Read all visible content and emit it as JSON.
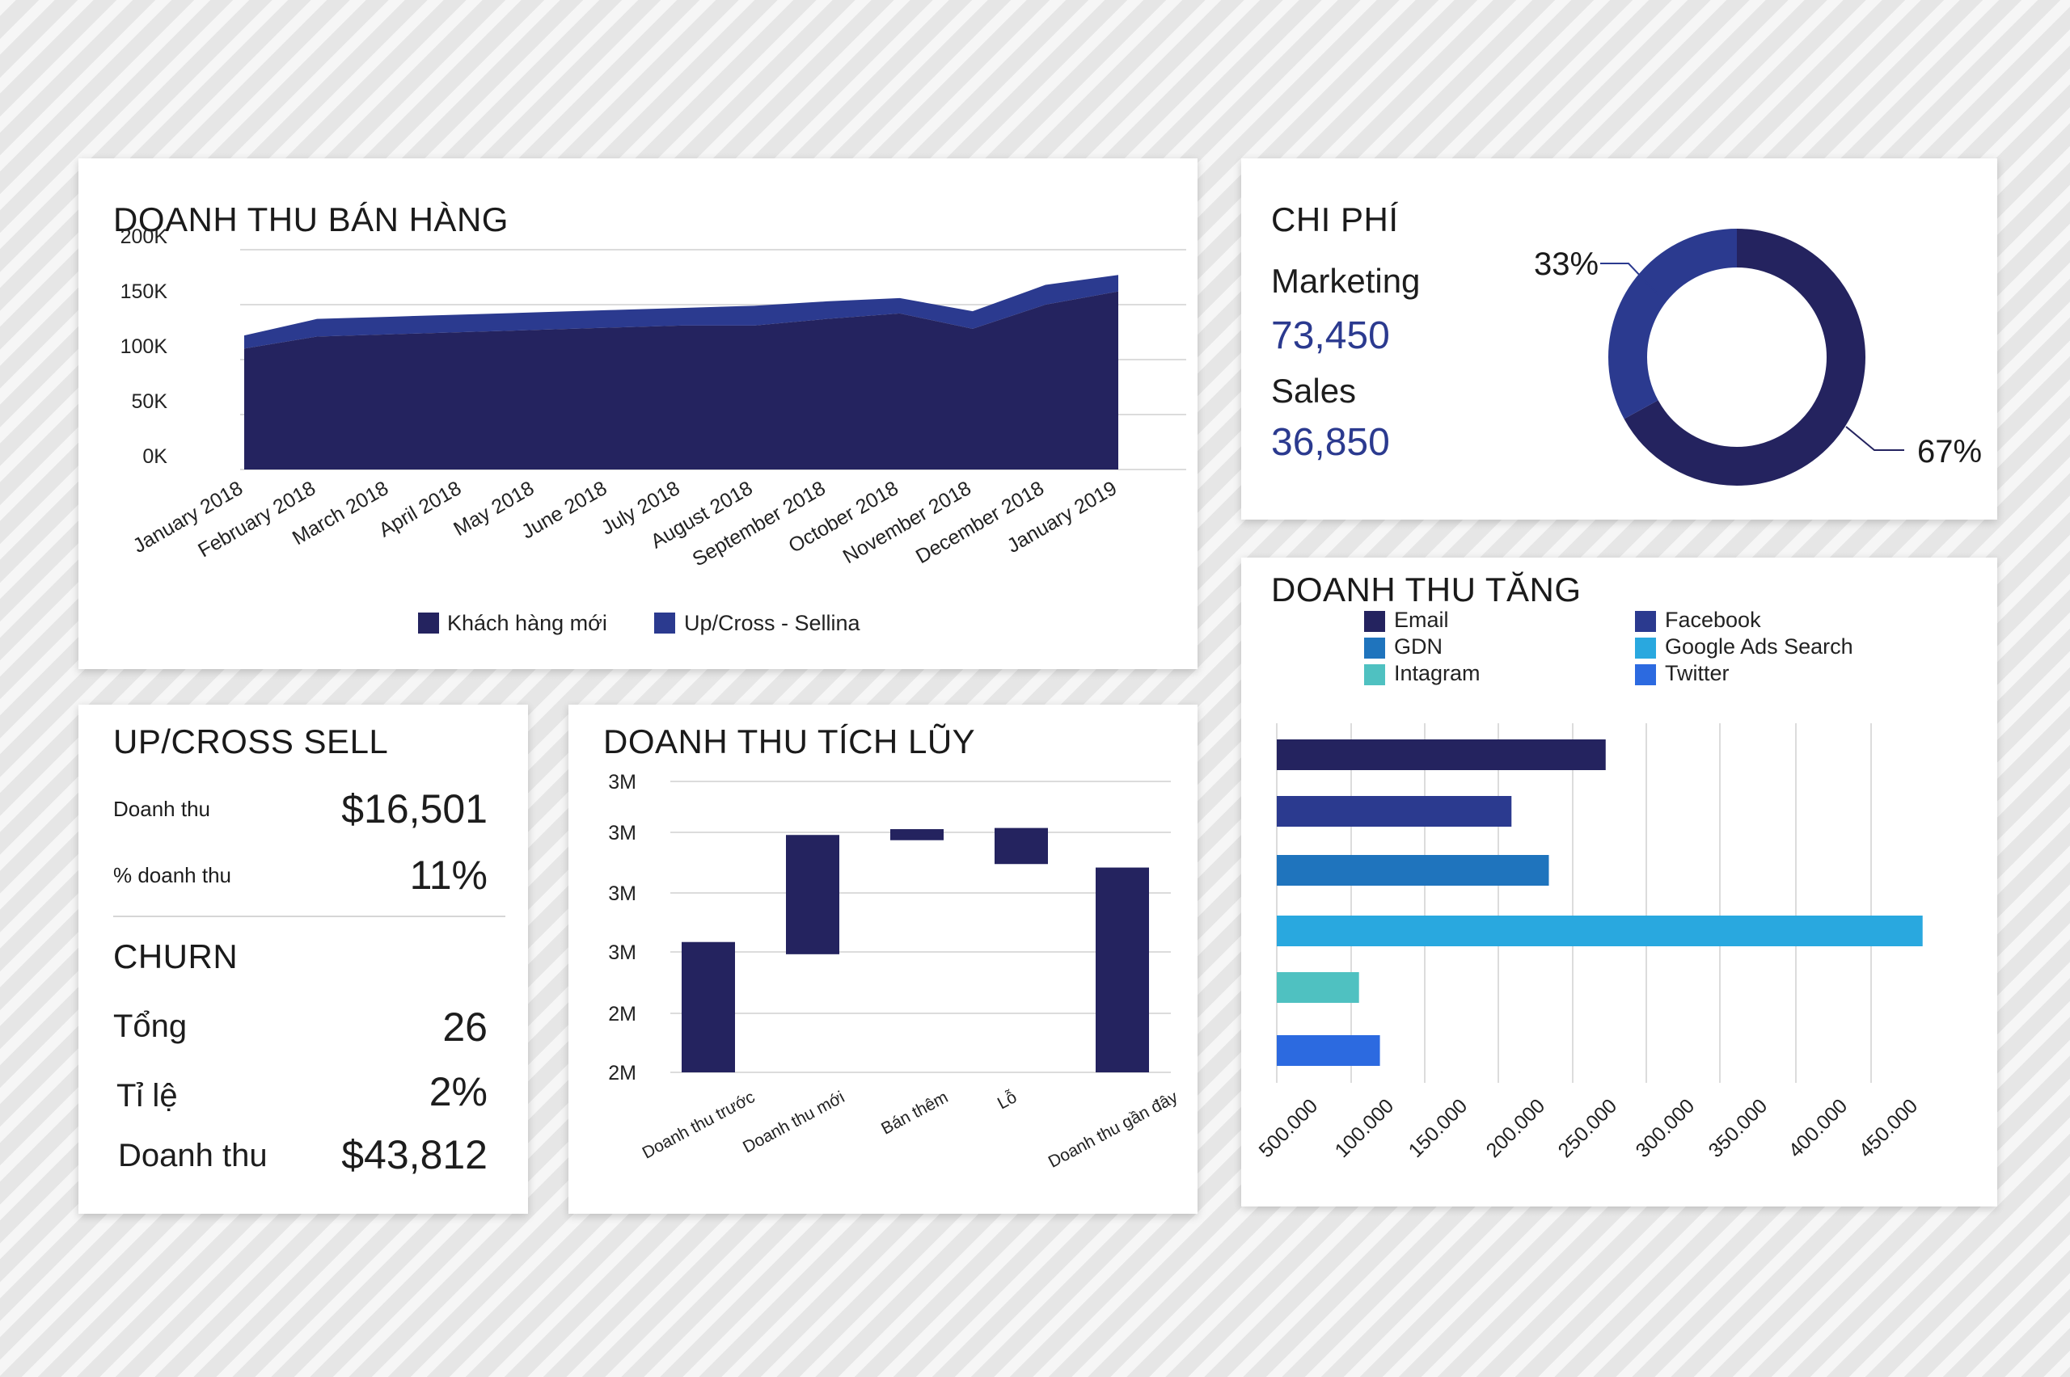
{
  "sales_revenue": {
    "title": "DOANH THU BÁN HÀNG"
  },
  "costs": {
    "title": "CHI PHÍ",
    "marketing_label": "Marketing",
    "marketing_value": "73,450",
    "sales_label": "Sales",
    "sales_value": "36,850"
  },
  "updown": {
    "title": "UP/CROSS SELL",
    "revenue_label": "Doanh thu",
    "revenue_value": "$16,501",
    "pct_label": "% doanh thu",
    "pct_value": "11%"
  },
  "churn": {
    "title": "CHURN",
    "total_label": "Tổng",
    "total_value": "26",
    "rate_label": "Tỉ lệ",
    "rate_value": "2%",
    "revenue_label": "Doanh thu",
    "revenue_value": "$43,812"
  },
  "cumulative": {
    "title": "DOANH THU TÍCH LŨY"
  },
  "growth": {
    "title": "DOANH THU TĂNG"
  },
  "colors": {
    "navy": "#24235f",
    "indigo": "#2b3a8f",
    "blue": "#1f74bd",
    "sky": "#29a8df",
    "teal": "#4fc1c1",
    "royal": "#2c6ae0"
  },
  "chart_data": [
    {
      "id": "sales-area",
      "type": "area",
      "stacked": true,
      "categories": [
        "January 2018",
        "February 2018",
        "March 2018",
        "April 2018",
        "May 2018",
        "June 2018",
        "July 2018",
        "August 2018",
        "September 2018",
        "October 2018",
        "November 2018",
        "December 2018",
        "January 2019"
      ],
      "series": [
        {
          "name": "Khách hàng mới",
          "color": "#24235f",
          "values": [
            110000,
            121000,
            123000,
            125000,
            127000,
            129000,
            131000,
            131000,
            137000,
            142000,
            128000,
            150000,
            162000
          ]
        },
        {
          "name": "Up/Cross - Sellina",
          "color": "#2b3a8f",
          "values": [
            12000,
            16000,
            16000,
            16000,
            16000,
            16000,
            16000,
            18000,
            16000,
            14000,
            16000,
            18000,
            15000
          ]
        }
      ],
      "yticks": [
        "200K",
        "150K",
        "100K",
        "50K",
        "0K"
      ],
      "ylim": [
        0,
        200000
      ],
      "grid": true,
      "legend": "bottom"
    },
    {
      "id": "cost-donut",
      "type": "pie",
      "donut": true,
      "slices": [
        {
          "label": "33%",
          "value": 33,
          "color": "#2b3a8f"
        },
        {
          "label": "67%",
          "value": 67,
          "color": "#24235f"
        }
      ]
    },
    {
      "id": "cumulative-waterfall",
      "type": "bar",
      "waterfall": true,
      "categories": [
        "Doanh thu trước",
        "Doanh thu mới",
        "Bán thêm",
        "Lỗ",
        "Doanh thu gần đây"
      ],
      "ranges": [
        [
          0,
          2.24
        ],
        [
          2.03,
          4.08
        ],
        [
          3.99,
          4.18
        ],
        [
          3.58,
          4.2
        ],
        [
          0,
          3.52
        ]
      ],
      "yticks": [
        "3M",
        "3M",
        "3M",
        "3M",
        "2M",
        "2M"
      ],
      "ylim": [
        0,
        5.0
      ],
      "color": "#24235f",
      "grid": true
    },
    {
      "id": "growth-bars",
      "type": "bar",
      "orientation": "horizontal",
      "categories": [
        "Email",
        "Facebook",
        "GDN",
        "Google Ads Search",
        "Intagram",
        "Twitter"
      ],
      "values": [
        220000,
        157000,
        182000,
        432000,
        55000,
        69000
      ],
      "colors": [
        "#24235f",
        "#2b3a8f",
        "#1f74bd",
        "#29a8df",
        "#4fc1c1",
        "#2c6ae0"
      ],
      "legend": [
        {
          "label": "Email",
          "color": "#24235f"
        },
        {
          "label": "Facebook",
          "color": "#2b3a8f"
        },
        {
          "label": "GDN",
          "color": "#1f74bd"
        },
        {
          "label": "Google Ads Search",
          "color": "#29a8df"
        },
        {
          "label": "Intagram",
          "color": "#4fc1c1"
        },
        {
          "label": "Twitter",
          "color": "#2c6ae0"
        }
      ],
      "xticks": [
        "500.000",
        "100.000",
        "150.000",
        "200.000",
        "250.000",
        "300.000",
        "350.000",
        "400.000",
        "450.000"
      ],
      "xlim": [
        0,
        450000
      ],
      "grid": true
    }
  ]
}
